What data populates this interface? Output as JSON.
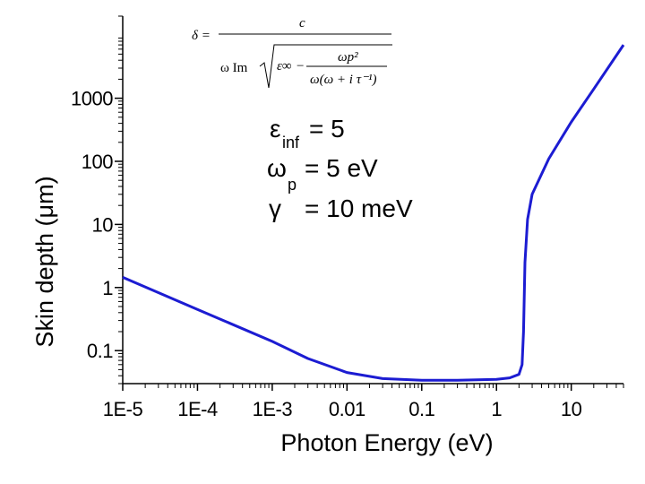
{
  "chart_data": {
    "type": "line",
    "title": "",
    "xlabel": "Photon Energy (eV)",
    "ylabel": "Skin depth (μm)",
    "xscale": "log",
    "yscale": "log",
    "xlim": [
      1e-05,
      50
    ],
    "ylim": [
      0.03,
      20000
    ],
    "x_ticks": [
      1e-05,
      0.0001,
      0.001,
      0.01,
      0.1,
      1,
      10
    ],
    "x_tick_labels": [
      "1E-5",
      "1E-4",
      "1E-3",
      "0.01",
      "0.1",
      "1",
      "10"
    ],
    "y_ticks": [
      0.1,
      1,
      10,
      100,
      1000
    ],
    "y_tick_labels": [
      "0.1",
      "1",
      "10",
      "100",
      "1000"
    ],
    "grid": false,
    "series": [
      {
        "color": "#1c1cd2",
        "x": [
          1e-05,
          0.0001,
          0.001,
          0.003,
          0.01,
          0.03,
          0.1,
          0.3,
          1,
          1.5,
          2,
          2.2,
          2.3,
          2.4,
          2.6,
          3,
          5,
          10,
          20,
          50
        ],
        "y": [
          1.45,
          0.45,
          0.14,
          0.075,
          0.045,
          0.036,
          0.034,
          0.034,
          0.035,
          0.037,
          0.042,
          0.06,
          0.2,
          2.5,
          12,
          30,
          110,
          420,
          1400,
          7000
        ]
      }
    ],
    "annotations": {
      "params": [
        {
          "symbol": "ε",
          "sub": "inf",
          "value": "= 5"
        },
        {
          "symbol": "ω",
          "sub": "p",
          "value": "= 5 eV"
        },
        {
          "symbol": "γ",
          "sub": "",
          "value": "= 10 meV"
        }
      ],
      "formula": {
        "lhs": "δ =",
        "numerator": "c",
        "denominator_prefix": "ω Im",
        "eps_inf": "ε∞",
        "minus": "−",
        "wp": "ωp²",
        "denominator_inner": "ω(ω + i τ⁻¹)"
      }
    }
  }
}
